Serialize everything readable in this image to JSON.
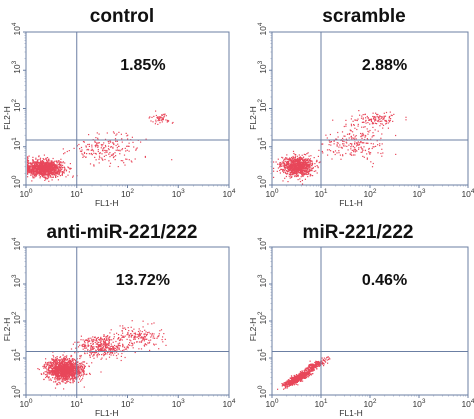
{
  "chart_data": [
    {
      "type": "scatter",
      "title": "control",
      "xlabel": "FL1-H",
      "ylabel": "FL2-H",
      "xscale": "log",
      "yscale": "log",
      "xlim": [
        1,
        10000
      ],
      "ylim": [
        1,
        10000
      ],
      "x_ticks": [
        "10^0",
        "10^1",
        "10^2",
        "10^3",
        "10^4"
      ],
      "y_ticks": [
        "10^0",
        "10^1",
        "10^2",
        "10^3",
        "10^4"
      ],
      "quadrant_gates": {
        "x": 10,
        "y": 15
      },
      "annotation": "1.85%",
      "point_color": "#e8475a",
      "populations": [
        {
          "x_center_log": 0.35,
          "y_center_log": 0.45,
          "x_spread_log": 0.38,
          "y_spread_log": 0.22,
          "count": 1100
        },
        {
          "x_center_log": 1.6,
          "y_center_log": 0.95,
          "x_spread_log": 0.7,
          "y_spread_log": 0.4,
          "count": 200
        },
        {
          "x_center_log": 2.65,
          "y_center_log": 1.75,
          "x_spread_log": 0.2,
          "y_spread_log": 0.12,
          "count": 55
        }
      ]
    },
    {
      "type": "scatter",
      "title": "scramble",
      "xlabel": "FL1-H",
      "ylabel": "FL2-H",
      "xscale": "log",
      "yscale": "log",
      "xlim": [
        1,
        10000
      ],
      "ylim": [
        1,
        10000
      ],
      "x_ticks": [
        "10^0",
        "10^1",
        "10^2",
        "10^3",
        "10^4"
      ],
      "y_ticks": [
        "10^0",
        "10^1",
        "10^2",
        "10^3",
        "10^4"
      ],
      "quadrant_gates": {
        "x": 10,
        "y": 15
      },
      "annotation": "2.88%",
      "point_color": "#e8475a",
      "populations": [
        {
          "x_center_log": 0.5,
          "y_center_log": 0.5,
          "x_spread_log": 0.32,
          "y_spread_log": 0.25,
          "count": 900
        },
        {
          "x_center_log": 1.7,
          "y_center_log": 1.1,
          "x_spread_log": 0.7,
          "y_spread_log": 0.45,
          "count": 220
        },
        {
          "x_center_log": 2.1,
          "y_center_log": 1.72,
          "x_spread_log": 0.45,
          "y_spread_log": 0.18,
          "count": 120
        }
      ]
    },
    {
      "type": "scatter",
      "title": "anti-miR-221/222",
      "xlabel": "FL1-H",
      "ylabel": "FL2-H",
      "xscale": "log",
      "yscale": "log",
      "xlim": [
        1,
        10000
      ],
      "ylim": [
        1,
        10000
      ],
      "x_ticks": [
        "10^0",
        "10^1",
        "10^2",
        "10^3",
        "10^4"
      ],
      "y_ticks": [
        "10^0",
        "10^1",
        "10^2",
        "10^3",
        "10^4"
      ],
      "quadrant_gates": {
        "x": 10,
        "y": 15
      },
      "annotation": "13.72%",
      "point_color": "#e8475a",
      "populations": [
        {
          "x_center_log": 0.75,
          "y_center_log": 0.7,
          "x_spread_log": 0.35,
          "y_spread_log": 0.3,
          "count": 1300
        },
        {
          "x_center_log": 1.5,
          "y_center_log": 1.3,
          "x_spread_log": 0.45,
          "y_spread_log": 0.3,
          "count": 380
        },
        {
          "x_center_log": 2.2,
          "y_center_log": 1.6,
          "x_spread_log": 0.5,
          "y_spread_log": 0.3,
          "count": 180
        }
      ]
    },
    {
      "type": "scatter",
      "title": "miR-221/222",
      "xlabel": "FL1-H",
      "ylabel": "FL2-H",
      "xscale": "log",
      "yscale": "log",
      "xlim": [
        1,
        10000
      ],
      "ylim": [
        1,
        10000
      ],
      "x_ticks": [
        "10^0",
        "10^1",
        "10^2",
        "10^3",
        "10^4"
      ],
      "y_ticks": [
        "10^0",
        "10^1",
        "10^2",
        "10^3",
        "10^4"
      ],
      "quadrant_gates": {
        "x": 10,
        "y": 15
      },
      "annotation": "0.46%",
      "point_color": "#e8475a",
      "populations": [
        {
          "x_center_log": 0.5,
          "y_center_log": 0.45,
          "x_spread_log": 0.25,
          "y_spread_log": 0.22,
          "count": 800,
          "diagonal": true
        },
        {
          "x_center_log": 0.85,
          "y_center_log": 0.8,
          "x_spread_log": 0.25,
          "y_spread_log": 0.22,
          "count": 220,
          "diagonal": true
        }
      ]
    }
  ]
}
